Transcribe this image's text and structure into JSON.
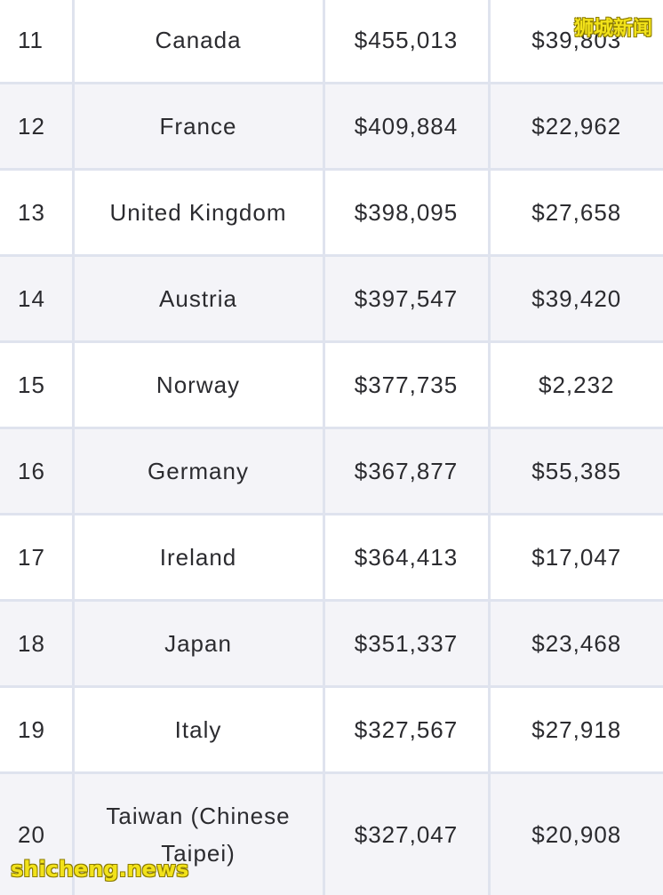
{
  "table": {
    "rows": [
      {
        "rank": "11",
        "country": "Canada",
        "value_a": "$455,013",
        "value_b": "$39,803"
      },
      {
        "rank": "12",
        "country": "France",
        "value_a": "$409,884",
        "value_b": "$22,962"
      },
      {
        "rank": "13",
        "country": "United Kingdom",
        "value_a": "$398,095",
        "value_b": "$27,658"
      },
      {
        "rank": "14",
        "country": "Austria",
        "value_a": "$397,547",
        "value_b": "$39,420"
      },
      {
        "rank": "15",
        "country": "Norway",
        "value_a": "$377,735",
        "value_b": "$2,232"
      },
      {
        "rank": "16",
        "country": "Germany",
        "value_a": "$367,877",
        "value_b": "$55,385"
      },
      {
        "rank": "17",
        "country": "Ireland",
        "value_a": "$364,413",
        "value_b": "$17,047"
      },
      {
        "rank": "18",
        "country": "Japan",
        "value_a": "$351,337",
        "value_b": "$23,468"
      },
      {
        "rank": "19",
        "country": "Italy",
        "value_a": "$327,567",
        "value_b": "$27,918"
      },
      {
        "rank": "20",
        "country": "Taiwan (Chinese Taipei)",
        "value_a": "$327,047",
        "value_b": "$20,908"
      }
    ]
  },
  "watermarks": {
    "top": "狮城新闻",
    "bottom": "shicheng.news"
  }
}
